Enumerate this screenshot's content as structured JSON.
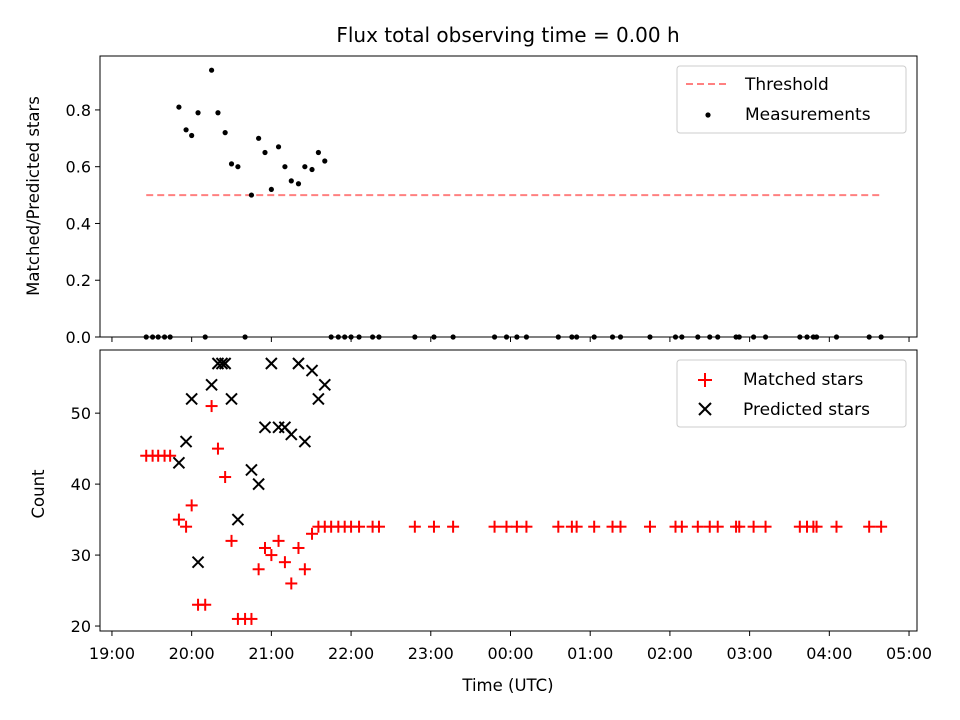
{
  "chart_data": {
    "type": "scatter",
    "title": "Flux total observing time = 0.00 h",
    "xlabel": "Time (UTC)",
    "x_unit": "hours since 00:00 UTC of first day (values above 24 are after midnight)",
    "xlim": [
      18.85,
      29.1
    ],
    "xticks": [
      19,
      20,
      21,
      22,
      23,
      24,
      25,
      26,
      27,
      28,
      29
    ],
    "xtick_labels": [
      "19:00",
      "20:00",
      "21:00",
      "22:00",
      "23:00",
      "00:00",
      "01:00",
      "02:00",
      "03:00",
      "04:00",
      "05:00"
    ],
    "colors": {
      "threshold": "#ff8080",
      "measurements": "#000000",
      "matched": "#ff0000",
      "predicted": "#000000"
    },
    "top": {
      "ylabel": "Matched/Predicted stars",
      "ylim": [
        0,
        0.99
      ],
      "yticks": [
        0.0,
        0.2,
        0.4,
        0.6,
        0.8
      ],
      "ytick_labels": [
        "0.0",
        "0.2",
        "0.4",
        "0.6",
        "0.8"
      ],
      "legend_position": "upper right",
      "threshold": {
        "name": "Threshold",
        "x": [
          19.43,
          28.65
        ],
        "y": 0.5
      },
      "measurements": {
        "name": "Measurements",
        "x": [
          19.43,
          19.51,
          19.58,
          19.66,
          19.73,
          19.84,
          19.93,
          20.0,
          20.08,
          20.17,
          20.25,
          20.33,
          20.42,
          20.5,
          20.58,
          20.67,
          20.75,
          20.84,
          20.92,
          21.0,
          21.09,
          21.17,
          21.25,
          21.34,
          21.42,
          21.51,
          21.59,
          21.67,
          21.75,
          21.84,
          21.92,
          22.0,
          22.1,
          22.27,
          22.35,
          22.8,
          23.04,
          23.28,
          23.8,
          23.95,
          24.08,
          24.2,
          24.6,
          24.77,
          24.83,
          25.05,
          25.28,
          25.38,
          25.75,
          26.07,
          26.15,
          26.35,
          26.5,
          26.6,
          26.83,
          26.87,
          27.05,
          27.2,
          27.63,
          27.72,
          27.8,
          27.84,
          28.09,
          28.5,
          28.65
        ],
        "y": [
          0,
          0,
          0,
          0,
          0,
          0.81,
          0.73,
          0.71,
          0.79,
          0,
          0.94,
          0.79,
          0.72,
          0.61,
          0.6,
          0,
          0.5,
          0.7,
          0.65,
          0.52,
          0.67,
          0.6,
          0.55,
          0.54,
          0.6,
          0.59,
          0.65,
          0.62,
          0,
          0,
          0,
          0,
          0,
          0,
          0,
          0,
          0,
          0,
          0,
          0,
          0,
          0,
          0,
          0,
          0,
          0,
          0,
          0,
          0,
          0,
          0,
          0,
          0,
          0,
          0,
          0,
          0,
          0,
          0,
          0,
          0,
          0,
          0,
          0,
          0
        ]
      }
    },
    "bottom": {
      "ylabel": "Count",
      "ylim": [
        19.3,
        58.9
      ],
      "yticks": [
        20,
        30,
        40,
        50
      ],
      "ytick_labels": [
        "20",
        "30",
        "40",
        "50"
      ],
      "legend_position": "upper right",
      "series": [
        {
          "name": "Matched stars",
          "marker": "+",
          "x": [
            19.43,
            19.51,
            19.58,
            19.66,
            19.73,
            19.84,
            19.93,
            20.0,
            20.08,
            20.17,
            20.25,
            20.33,
            20.42,
            20.5,
            20.58,
            20.67,
            20.75,
            20.84,
            20.92,
            21.0,
            21.09,
            21.17,
            21.25,
            21.34,
            21.42,
            21.51,
            21.59,
            21.67,
            21.75,
            21.84,
            21.92,
            22.0,
            22.1,
            22.27,
            22.35,
            22.8,
            23.04,
            23.28,
            23.8,
            23.95,
            24.08,
            24.2,
            24.6,
            24.77,
            24.83,
            25.05,
            25.28,
            25.38,
            25.75,
            26.07,
            26.15,
            26.35,
            26.5,
            26.6,
            26.83,
            26.87,
            27.05,
            27.2,
            27.63,
            27.72,
            27.8,
            27.84,
            28.09,
            28.5,
            28.65
          ],
          "y": [
            44,
            44,
            44,
            44,
            44,
            35,
            34,
            37,
            23,
            23,
            51,
            45,
            41,
            32,
            21,
            21,
            21,
            28,
            31,
            30,
            32,
            29,
            26,
            31,
            28,
            33,
            34,
            34,
            34,
            34,
            34,
            34,
            34,
            34,
            34,
            34,
            34,
            34,
            34,
            34,
            34,
            34,
            34,
            34,
            34,
            34,
            34,
            34,
            34,
            34,
            34,
            34,
            34,
            34,
            34,
            34,
            34,
            34,
            34,
            34,
            34,
            34,
            34,
            34,
            34
          ]
        },
        {
          "name": "Predicted stars",
          "marker": "x",
          "x": [
            19.84,
            19.93,
            20.0,
            20.08,
            20.25,
            20.33,
            20.42,
            20.5,
            20.58,
            20.75,
            20.84,
            20.92,
            21.0,
            21.09,
            21.17,
            21.25,
            21.34,
            21.42,
            21.51,
            21.59,
            21.67,
            20.38
          ],
          "y": [
            43,
            46,
            52,
            29,
            54,
            57,
            57,
            52,
            35,
            42,
            40,
            48,
            57,
            48,
            48,
            47,
            57,
            46,
            56,
            52,
            54,
            57
          ]
        }
      ]
    }
  }
}
